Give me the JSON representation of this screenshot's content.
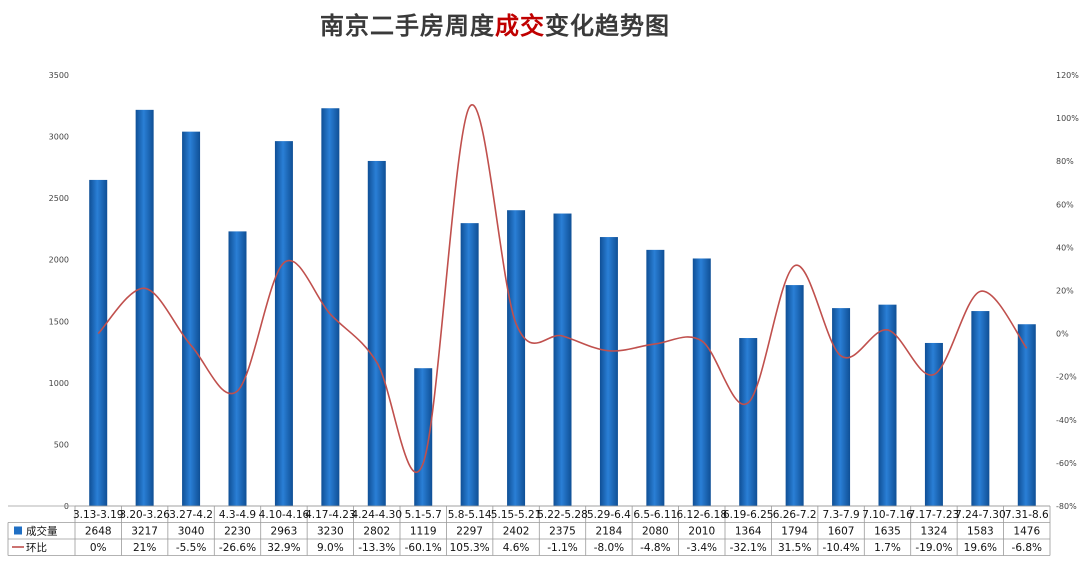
{
  "chart_data": {
    "type": "bar",
    "title_parts": [
      "南京二手房周度",
      "成交",
      "变化趋势图"
    ],
    "categories": [
      "3.13-3.19",
      "3.20-3.26",
      "3.27-4.2",
      "4.3-4.9",
      "4.10-4.16",
      "4.17-4.23",
      "4.24-4.30",
      "5.1-5.7",
      "5.8-5.14",
      "5.15-5.21",
      "5.22-5.28",
      "5.29-6.4",
      "6.5-6.11",
      "6.12-6.18",
      "6.19-6.25",
      "6.26-7.2",
      "7.3-7.9",
      "7.10-7.16",
      "7.17-7.23",
      "7.24-7.30",
      "7.31-8.6"
    ],
    "series": [
      {
        "name": "成交量",
        "type": "bar",
        "axis": "left",
        "color": "#1f6fc4",
        "values": [
          2648,
          3217,
          3040,
          2230,
          2963,
          3230,
          2802,
          1119,
          2297,
          2402,
          2375,
          2184,
          2080,
          2010,
          1364,
          1794,
          1607,
          1635,
          1324,
          1583,
          1476
        ],
        "labels": [
          "2648",
          "3217",
          "3040",
          "2230",
          "2963",
          "3230",
          "2802",
          "1119",
          "2297",
          "2402",
          "2375",
          "2184",
          "2080",
          "2010",
          "1364",
          "1794",
          "1607",
          "1635",
          "1324",
          "1583",
          "1476"
        ]
      },
      {
        "name": "环比",
        "type": "line",
        "axis": "right",
        "color": "#c0504d",
        "values": [
          0,
          21,
          -5.5,
          -26.6,
          32.9,
          9.0,
          -13.3,
          -60.1,
          105.3,
          4.6,
          -1.1,
          -8.0,
          -4.8,
          -3.4,
          -32.1,
          31.5,
          -10.4,
          1.7,
          -19.0,
          19.6,
          -6.8
        ],
        "labels": [
          "0%",
          "21%",
          "-5.5%",
          "-26.6%",
          "32.9%",
          "9.0%",
          "-13.3%",
          "-60.1%",
          "105.3%",
          "4.6%",
          "-1.1%",
          "-8.0%",
          "-4.8%",
          "-3.4%",
          "-32.1%",
          "31.5%",
          "-10.4%",
          "1.7%",
          "-19.0%",
          "19.6%",
          "-6.8%"
        ]
      }
    ],
    "y_left": {
      "range": [
        0,
        3500
      ],
      "ticks": [
        "0",
        "500",
        "1000",
        "1500",
        "2000",
        "2500",
        "3000",
        "3500"
      ]
    },
    "y_right": {
      "range": [
        -80,
        120
      ],
      "ticks": [
        "-80%",
        "-60%",
        "-40%",
        "-20%",
        "0%",
        "20%",
        "40%",
        "60%",
        "80%",
        "100%",
        "120%"
      ]
    },
    "data_table": true,
    "legend": "data-table-left",
    "grid": false
  }
}
